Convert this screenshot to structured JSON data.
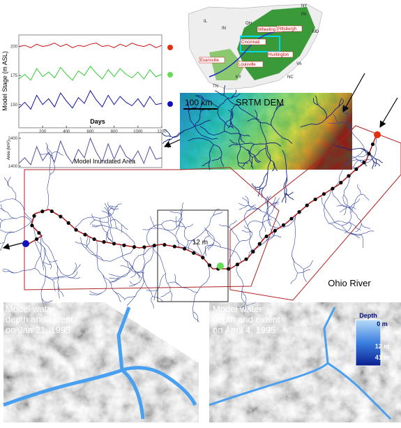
{
  "stage_chart": {
    "type": "line",
    "y_label": "Model Stage (m ASL)",
    "x_label": "Days",
    "xlim": [
      0,
      1200
    ],
    "xticks": [
      200,
      400,
      600,
      800,
      1000,
      1200
    ],
    "ylim": [
      130,
      210
    ],
    "yticks": [
      150,
      175,
      200
    ],
    "x": [
      0,
      50,
      100,
      150,
      200,
      250,
      300,
      350,
      400,
      450,
      500,
      550,
      600,
      650,
      700,
      750,
      800,
      850,
      900,
      950,
      1000,
      1050,
      1100,
      1150,
      1200
    ],
    "series": [
      {
        "color": "#cc1010",
        "values": [
          200,
          201,
          199,
          202,
          200,
          201,
          203,
          200,
          202,
          199,
          201,
          200,
          202,
          203,
          200,
          201,
          199,
          202,
          200,
          203,
          201,
          200,
          202,
          199,
          201
        ]
      },
      {
        "color": "#33cc33",
        "values": [
          172,
          176,
          171,
          181,
          174,
          178,
          173,
          182,
          176,
          171,
          179,
          175,
          183,
          177,
          172,
          180,
          174,
          181,
          176,
          173,
          178,
          172,
          180,
          174,
          176
        ]
      },
      {
        "color": "#1010a0",
        "values": [
          147,
          152,
          146,
          158,
          150,
          155,
          148,
          160,
          153,
          147,
          156,
          151,
          162,
          154,
          148,
          158,
          150,
          157,
          152,
          149,
          155,
          148,
          157,
          150,
          151
        ]
      }
    ]
  },
  "area_chart": {
    "type": "line",
    "y_label": "Area (km²)",
    "title": "Model Inundated Area",
    "ylim": [
      1350,
      2600
    ],
    "yticks": [
      1400,
      2400
    ],
    "values": [
      1500,
      1700,
      1450,
      2100,
      1600,
      1900,
      1550,
      2300,
      1800,
      1500,
      2000,
      1700,
      2400,
      1900,
      1550,
      2200,
      1650,
      2150,
      1750,
      1600,
      1950,
      1500,
      2100,
      1650,
      1700
    ],
    "color": "#5050a0"
  },
  "location_map": {
    "states": [
      "IL",
      "IN",
      "OH",
      "PA",
      "NY",
      "MD",
      "WV",
      "VA",
      "KY",
      "TN",
      "NC"
    ],
    "cities": [
      "Wheeling",
      "Pittsburgh",
      "Cincinnati",
      "Huntington",
      "Evansville",
      "Louisville"
    ]
  },
  "dem": {
    "scale": "100 km",
    "title": "SRTM DEM"
  },
  "network": {
    "depth_label": "12 m",
    "river": "Ohio River"
  },
  "snapshots": [
    {
      "lines": [
        "Model water",
        "depth and extent",
        "on Jan 21, 1995"
      ]
    },
    {
      "lines": [
        "Model water",
        "depth and extent",
        "on April 4, 1995"
      ]
    }
  ],
  "depth_legend": {
    "title": "Depth",
    "labels": [
      "0 m",
      "12 m",
      "41 m"
    ]
  }
}
